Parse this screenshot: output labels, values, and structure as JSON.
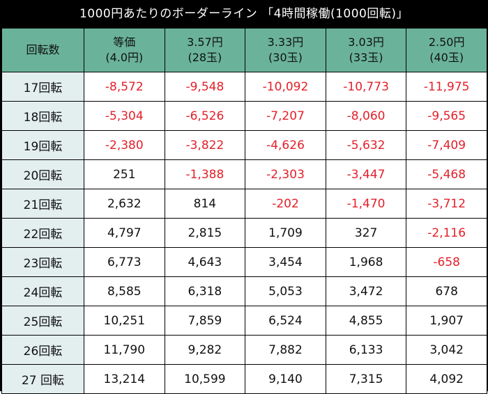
{
  "title": "1000円あたりのボーダーライン 「4時間稼働(1000回転)」",
  "colors": {
    "header_bg": "#6ab39a",
    "row_header_bg": "#e3eeef",
    "negative": "#e3202a",
    "border": "#000000"
  },
  "table": {
    "corner_label": "回転数",
    "columns": [
      {
        "line1": "等価",
        "line2": "(4.0円)"
      },
      {
        "line1": "3.57円",
        "line2": "(28玉)"
      },
      {
        "line1": "3.33円",
        "line2": "(30玉)"
      },
      {
        "line1": "3.03円",
        "line2": "(33玉)"
      },
      {
        "line1": "2.50円",
        "line2": "(40玉)"
      }
    ],
    "rows": [
      {
        "label": "17回転",
        "values": [
          "-8,572",
          "-9,548",
          "-10,092",
          "-10,773",
          "-11,975"
        ]
      },
      {
        "label": "18回転",
        "values": [
          "-5,304",
          "-6,526",
          "-7,207",
          "-8,060",
          "-9,565"
        ]
      },
      {
        "label": "19回転",
        "values": [
          "-2,380",
          "-3,822",
          "-4,626",
          "-5,632",
          "-7,409"
        ]
      },
      {
        "label": "20回転",
        "values": [
          "251",
          "-1,388",
          "-2,303",
          "-3,447",
          "-5,468"
        ]
      },
      {
        "label": "21回転",
        "values": [
          "2,632",
          "814",
          "-202",
          "-1,470",
          "-3,712"
        ]
      },
      {
        "label": "22回転",
        "values": [
          "4,797",
          "2,815",
          "1,709",
          "327",
          "-2,116"
        ]
      },
      {
        "label": "23回転",
        "values": [
          "6,773",
          "4,643",
          "3,454",
          "1,968",
          "-658"
        ]
      },
      {
        "label": "24回転",
        "values": [
          "8,585",
          "6,318",
          "5,053",
          "3,472",
          "678"
        ]
      },
      {
        "label": "25回転",
        "values": [
          "10,251",
          "7,859",
          "6,524",
          "4,855",
          "1,907"
        ]
      },
      {
        "label": "26回転",
        "values": [
          "11,790",
          "9,282",
          "7,882",
          "6,133",
          "3,042"
        ]
      },
      {
        "label": "27 回転",
        "values": [
          "13,214",
          "10,599",
          "9,140",
          "7,315",
          "4,092"
        ]
      }
    ]
  }
}
